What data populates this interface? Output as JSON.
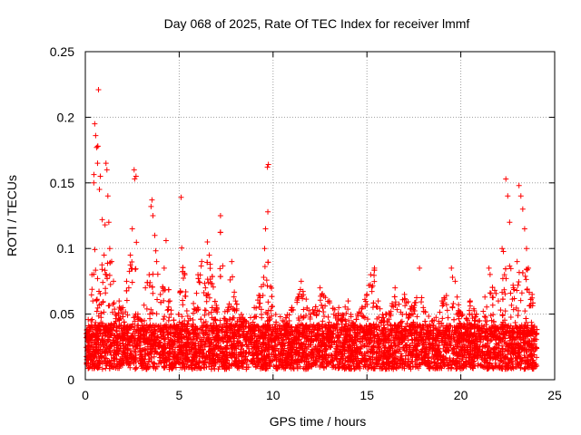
{
  "chart_data": {
    "type": "scatter",
    "title": "Day 068 of 2025, Rate Of TEC Index for receiver lmmf",
    "xlabel": "GPS time / hours",
    "ylabel": "ROTI / TECUs",
    "xlim": [
      0,
      25
    ],
    "ylim": [
      0,
      0.25
    ],
    "x_ticks": [
      0,
      5,
      10,
      15,
      20,
      25
    ],
    "y_ticks": [
      0,
      0.05,
      0.1,
      0.15,
      0.2,
      0.25
    ],
    "x_tick_labels": [
      "0",
      "5",
      "10",
      "15",
      "20",
      "25"
    ],
    "y_tick_labels": [
      "0",
      "0.05",
      "0.1",
      "0.15",
      "0.2",
      "0.25"
    ],
    "grid": true,
    "marker": "plus",
    "marker_color": "#ff0000",
    "series": [
      {
        "name": "ROTI",
        "points": [
          [
            0.1,
            0.022
          ],
          [
            0.2,
            0.03
          ],
          [
            0.3,
            0.045
          ],
          [
            0.35,
            0.08
          ],
          [
            0.4,
            0.06
          ],
          [
            0.45,
            0.15
          ],
          [
            0.5,
            0.195
          ],
          [
            0.55,
            0.186
          ],
          [
            0.6,
            0.177
          ],
          [
            0.65,
            0.165
          ],
          [
            0.7,
            0.221
          ],
          [
            0.75,
            0.145
          ],
          [
            0.8,
            0.155
          ],
          [
            0.9,
            0.122
          ],
          [
            1.0,
            0.095
          ],
          [
            1.05,
            0.118
          ],
          [
            1.1,
            0.165
          ],
          [
            1.15,
            0.16
          ],
          [
            1.2,
            0.14
          ],
          [
            1.25,
            0.12
          ],
          [
            1.3,
            0.1
          ],
          [
            1.4,
            0.09
          ],
          [
            1.5,
            0.075
          ],
          [
            1.6,
            0.05
          ],
          [
            1.8,
            0.06
          ],
          [
            2.0,
            0.055
          ],
          [
            2.2,
            0.075
          ],
          [
            2.4,
            0.095
          ],
          [
            2.5,
            0.115
          ],
          [
            2.6,
            0.16
          ],
          [
            2.7,
            0.155
          ],
          [
            2.8,
            0.05
          ],
          [
            3.0,
            0.045
          ],
          [
            3.2,
            0.07
          ],
          [
            3.4,
            0.08
          ],
          [
            3.5,
            0.132
          ],
          [
            3.55,
            0.137
          ],
          [
            3.6,
            0.125
          ],
          [
            3.7,
            0.11
          ],
          [
            3.8,
            0.09
          ],
          [
            4.0,
            0.065
          ],
          [
            4.2,
            0.085
          ],
          [
            4.3,
            0.106
          ],
          [
            4.5,
            0.06
          ],
          [
            4.8,
            0.04
          ],
          [
            5.0,
            0.035
          ],
          [
            5.1,
            0.139
          ],
          [
            5.3,
            0.08
          ],
          [
            5.5,
            0.045
          ],
          [
            6.0,
            0.08
          ],
          [
            6.2,
            0.09
          ],
          [
            6.4,
            0.07
          ],
          [
            6.5,
            0.105
          ],
          [
            6.6,
            0.095
          ],
          [
            7.0,
            0.055
          ],
          [
            7.2,
            0.125
          ],
          [
            7.5,
            0.045
          ],
          [
            7.8,
            0.09
          ],
          [
            8.0,
            0.06
          ],
          [
            8.5,
            0.045
          ],
          [
            9.0,
            0.055
          ],
          [
            9.5,
            0.078
          ],
          [
            9.55,
            0.1
          ],
          [
            9.6,
            0.115
          ],
          [
            9.7,
            0.162
          ],
          [
            9.75,
            0.164
          ],
          [
            10.0,
            0.035
          ],
          [
            10.5,
            0.045
          ],
          [
            11.0,
            0.055
          ],
          [
            11.5,
            0.075
          ],
          [
            12.0,
            0.05
          ],
          [
            12.5,
            0.07
          ],
          [
            13.0,
            0.06
          ],
          [
            13.5,
            0.055
          ],
          [
            14.0,
            0.06
          ],
          [
            14.5,
            0.05
          ],
          [
            15.0,
            0.065
          ],
          [
            15.2,
            0.08
          ],
          [
            15.4,
            0.085
          ],
          [
            15.6,
            0.06
          ],
          [
            16.0,
            0.05
          ],
          [
            16.5,
            0.07
          ],
          [
            17.0,
            0.065
          ],
          [
            17.5,
            0.055
          ],
          [
            17.8,
            0.085
          ],
          [
            18.0,
            0.055
          ],
          [
            18.5,
            0.045
          ],
          [
            19.0,
            0.06
          ],
          [
            19.5,
            0.085
          ],
          [
            19.7,
            0.075
          ],
          [
            20.0,
            0.05
          ],
          [
            20.5,
            0.06
          ],
          [
            21.0,
            0.045
          ],
          [
            21.5,
            0.085
          ],
          [
            22.0,
            0.06
          ],
          [
            22.2,
            0.1
          ],
          [
            22.4,
            0.153
          ],
          [
            22.5,
            0.14
          ],
          [
            22.6,
            0.12
          ],
          [
            22.8,
            0.07
          ],
          [
            23.0,
            0.09
          ],
          [
            23.1,
            0.148
          ],
          [
            23.2,
            0.14
          ],
          [
            23.3,
            0.13
          ],
          [
            23.4,
            0.115
          ],
          [
            23.5,
            0.1
          ],
          [
            23.6,
            0.085
          ],
          [
            23.8,
            0.065
          ],
          [
            24.0,
            0.035
          ]
        ]
      }
    ]
  }
}
